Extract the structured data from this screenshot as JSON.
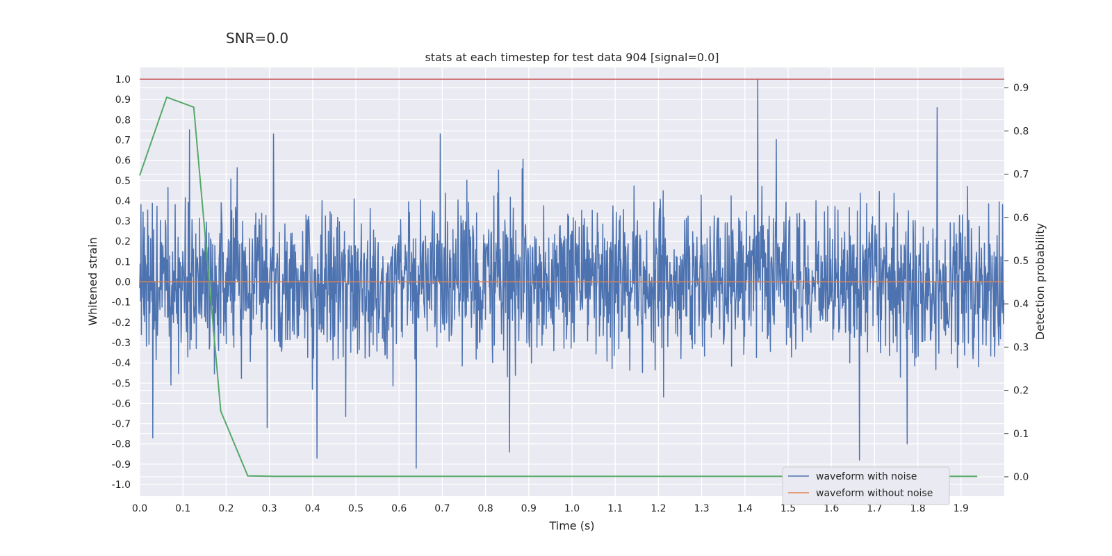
{
  "figure": {
    "suptitle": "SNR=0.0"
  },
  "chart_data": {
    "type": "line",
    "title": "stats at each timestep for test data 904 [signal=0.0]",
    "xlabel": "Time (s)",
    "ylabel": "Whitened strain",
    "y2label": "Detection probability",
    "xlim": [
      0.0,
      2.0
    ],
    "ylim": [
      -1.05,
      1.05
    ],
    "y2lim": [
      -0.04,
      0.94
    ],
    "xticks": [
      "0.0",
      "0.1",
      "0.2",
      "0.3",
      "0.4",
      "0.5",
      "0.6",
      "0.7",
      "0.8",
      "0.9",
      "1.0",
      "1.1",
      "1.2",
      "1.3",
      "1.4",
      "1.5",
      "1.6",
      "1.7",
      "1.8",
      "1.9"
    ],
    "yticks": [
      "1.0",
      "0.9",
      "0.8",
      "0.7",
      "0.6",
      "0.5",
      "0.4",
      "0.3",
      "0.2",
      "0.1",
      "0.0",
      "-0.1",
      "-0.2",
      "-0.3",
      "-0.4",
      "-0.5",
      "-0.6",
      "-0.7",
      "-0.8",
      "-0.9",
      "-1.0"
    ],
    "y2ticks": [
      "0.9",
      "0.8",
      "0.7",
      "0.6",
      "0.5",
      "0.4",
      "0.3",
      "0.2",
      "0.1",
      "0.0"
    ],
    "grid": true,
    "legend_position": "lower-right",
    "threshold_line": {
      "y": 1.0,
      "color": "#c44e52"
    },
    "noise": {
      "name": "waveform with noise",
      "color": "#4c72b0",
      "num_samples": 2048,
      "peaks": [
        {
          "t": 1.43,
          "v": 1.0
        },
        {
          "t": 1.845,
          "v": 0.86
        },
        {
          "t": 0.115,
          "v": 0.75
        },
        {
          "t": 0.31,
          "v": 0.73
        },
        {
          "t": 0.695,
          "v": 0.73
        },
        {
          "t": 0.64,
          "v": -0.92
        },
        {
          "t": 1.665,
          "v": -0.88
        },
        {
          "t": 0.41,
          "v": -0.87
        },
        {
          "t": 0.855,
          "v": -0.84
        },
        {
          "t": 0.03,
          "v": -0.77
        },
        {
          "t": 1.775,
          "v": -0.8
        },
        {
          "t": 0.295,
          "v": -0.72
        }
      ]
    },
    "clean": {
      "name": "waveform without noise",
      "color": "#dd8452",
      "value": 0.0
    },
    "probability": {
      "name": "Detection probability",
      "color": "#55a868",
      "x": [
        0.0,
        0.0625,
        0.125,
        0.1875,
        0.25,
        0.3125,
        1.9375
      ],
      "values": [
        0.697,
        0.878,
        0.855,
        0.152,
        0.002,
        0.001,
        0.001
      ]
    }
  }
}
